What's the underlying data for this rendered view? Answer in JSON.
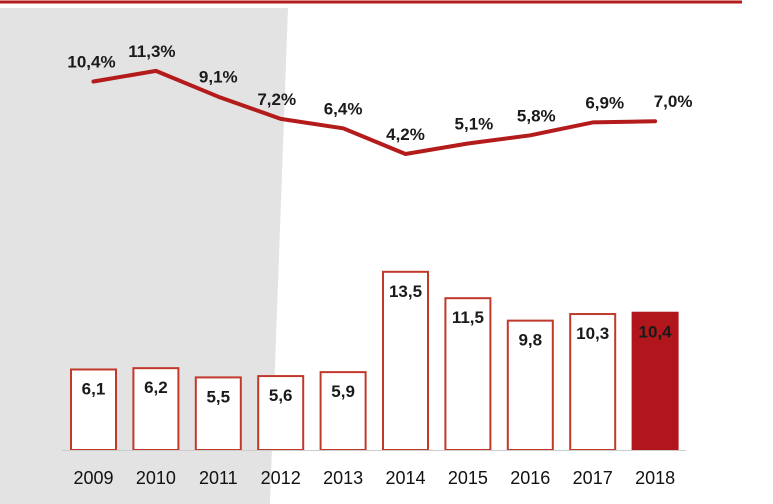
{
  "colors": {
    "accent": "#b41c1c",
    "bar_outline": "#c0392b",
    "highlight_fill": "#b0161b",
    "background_panel": "#e3e3e3",
    "text": "#1a1a1a"
  },
  "chart_data": [
    {
      "type": "line",
      "x": [
        "2009",
        "2010",
        "2011",
        "2012",
        "2013",
        "2014",
        "2015",
        "2016",
        "2017",
        "2018"
      ],
      "values": [
        10.4,
        11.3,
        9.1,
        7.2,
        6.4,
        4.2,
        5.1,
        5.8,
        6.9,
        7.0
      ],
      "value_labels": [
        "10,4%",
        "11,3%",
        "9,1%",
        "7,2%",
        "6,4%",
        "4,2%",
        "5,1%",
        "5,8%",
        "6,9%",
        "7,0%"
      ],
      "color": "#b41c1c"
    },
    {
      "type": "bar",
      "categories": [
        "2009",
        "2010",
        "2011",
        "2012",
        "2013",
        "2014",
        "2015",
        "2016",
        "2017",
        "2018"
      ],
      "values": [
        6.1,
        6.2,
        5.5,
        5.6,
        5.9,
        13.5,
        11.5,
        9.8,
        10.3,
        10.4
      ],
      "value_labels": [
        "6,1",
        "6,2",
        "5,5",
        "5,6",
        "5,9",
        "13,5",
        "11,5",
        "9,8",
        "10,3",
        "10,4"
      ],
      "highlighted_category": "2018",
      "style": "outlined bars, last bar filled"
    }
  ]
}
